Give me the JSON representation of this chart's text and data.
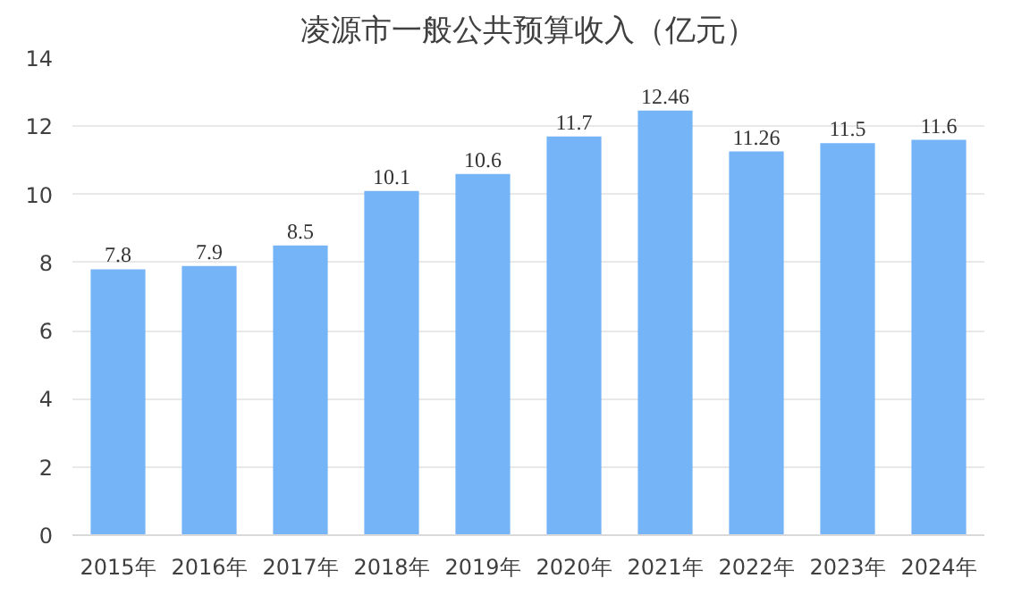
{
  "chart_data": {
    "type": "bar",
    "title": "凌源市一般公共预算收入（亿元）",
    "categories": [
      "2015年",
      "2016年",
      "2017年",
      "2018年",
      "2019年",
      "2020年",
      "2021年",
      "2022年",
      "2023年",
      "2024年"
    ],
    "values": [
      7.8,
      7.9,
      8.5,
      10.1,
      10.6,
      11.7,
      12.46,
      11.26,
      11.5,
      11.6
    ],
    "color": "#74b4f7",
    "ylim": [
      0,
      14
    ],
    "yticks": [
      0,
      2,
      4,
      6,
      8,
      10,
      12,
      14
    ],
    "grid": "y",
    "data_labels": true
  }
}
